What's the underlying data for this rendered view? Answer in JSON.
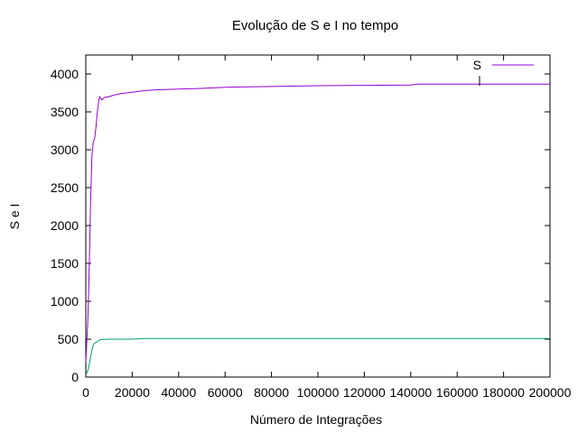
{
  "chart_data": {
    "type": "line",
    "title": "Evolução de S e I no tempo",
    "xlabel": "Número de Integrações",
    "ylabel": "S e I",
    "xlim": [
      0,
      200000
    ],
    "ylim": [
      0,
      4250
    ],
    "x_ticks": [
      {
        "value": 0,
        "label": "0"
      },
      {
        "value": 20000,
        "label": "20000"
      },
      {
        "value": 40000,
        "label": "40000"
      },
      {
        "value": 60000,
        "label": "60000"
      },
      {
        "value": 80000,
        "label": "80000"
      },
      {
        "value": 100000,
        "label": "100000"
      },
      {
        "value": 120000,
        "label": "120000"
      },
      {
        "value": 140000,
        "label": "140000"
      },
      {
        "value": 160000,
        "label": "160000"
      },
      {
        "value": 180000,
        "label": "180000"
      },
      {
        "value": 200000,
        "label": "200000"
      }
    ],
    "y_ticks": [
      {
        "value": 0,
        "label": "0"
      },
      {
        "value": 500,
        "label": "500"
      },
      {
        "value": 1000,
        "label": "1000"
      },
      {
        "value": 1500,
        "label": "1500"
      },
      {
        "value": 2000,
        "label": "2000"
      },
      {
        "value": 2500,
        "label": "2500"
      },
      {
        "value": 3000,
        "label": "3000"
      },
      {
        "value": 3500,
        "label": "3500"
      },
      {
        "value": 4000,
        "label": "4000"
      }
    ],
    "grid": false,
    "legend_position": "top-right",
    "series": [
      {
        "name": "S",
        "color": "#9400d3",
        "x": [
          0,
          400,
          800,
          1200,
          1600,
          2000,
          2600,
          3200,
          3800,
          4400,
          5000,
          5600,
          6000,
          6400,
          7000,
          8000,
          10000,
          12000,
          15000,
          20000,
          25000,
          30000,
          40000,
          50000,
          60000,
          80000,
          100000,
          120000,
          140000,
          143000,
          160000,
          170000,
          180000,
          200000
        ],
        "y": [
          200,
          450,
          700,
          1100,
          1600,
          2200,
          2900,
          3100,
          3150,
          3300,
          3500,
          3650,
          3700,
          3680,
          3660,
          3690,
          3700,
          3720,
          3740,
          3760,
          3780,
          3790,
          3800,
          3810,
          3825,
          3835,
          3845,
          3850,
          3855,
          3865,
          3865,
          3865,
          3865,
          3865
        ]
      },
      {
        "name": "",
        "color": "#009e73",
        "x": [
          0,
          500,
          1000,
          1500,
          2000,
          2500,
          3000,
          3500,
          4000,
          4500,
          5000,
          5500,
          6000,
          7000,
          8000,
          10000,
          15000,
          20000,
          25000,
          40000,
          60000,
          100000,
          140000,
          200000
        ],
        "y": [
          30,
          60,
          100,
          170,
          250,
          330,
          400,
          440,
          450,
          460,
          470,
          480,
          490,
          495,
          498,
          500,
          500,
          500,
          510,
          510,
          510,
          510,
          510,
          510
        ]
      }
    ]
  }
}
